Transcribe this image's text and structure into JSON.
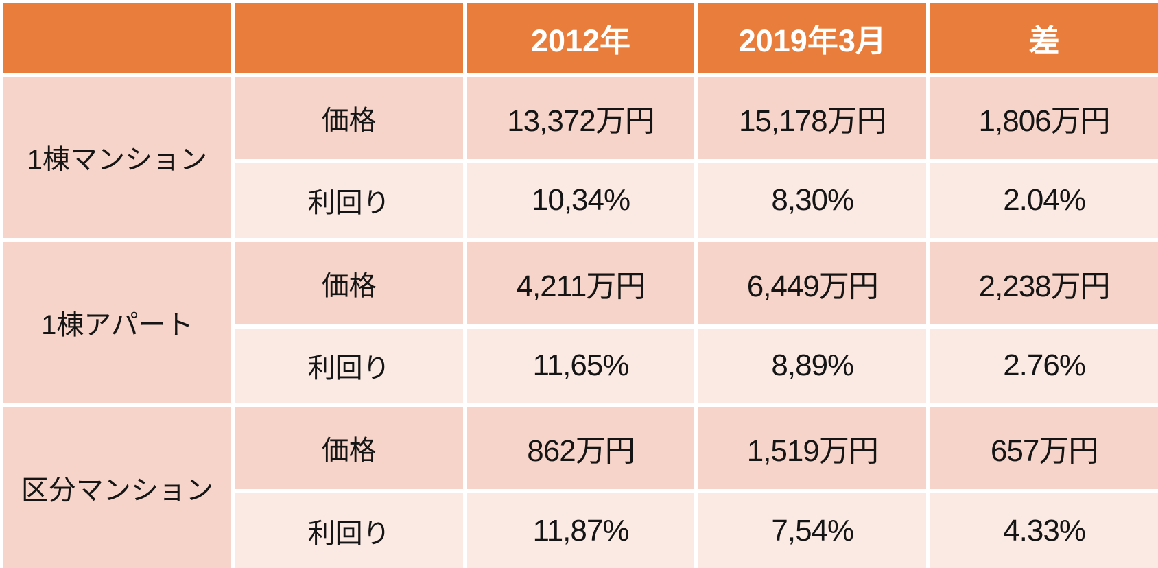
{
  "table": {
    "header_labels": [
      "",
      "",
      "2012年",
      "2019年3月",
      "差"
    ],
    "groups": [
      {
        "name": "1棟マンション",
        "rows": [
          {
            "label": "価格",
            "values": [
              "13,372万円",
              "15,178万円",
              "1,806万円"
            ]
          },
          {
            "label": "利回り",
            "values": [
              "10,34%",
              "8,30%",
              "2.04%"
            ]
          }
        ]
      },
      {
        "name": "1棟アパート",
        "rows": [
          {
            "label": "価格",
            "values": [
              "4,211万円",
              "6,449万円",
              "2,238万円"
            ]
          },
          {
            "label": "利回り",
            "values": [
              "11,65%",
              "8,89%",
              "2.76%"
            ]
          }
        ]
      },
      {
        "name": "区分マンション",
        "rows": [
          {
            "label": "価格",
            "values": [
              "862万円",
              "1,519万円",
              "657万円"
            ]
          },
          {
            "label": "利回り",
            "values": [
              "11,87%",
              "7,54%",
              "4.33%"
            ]
          }
        ]
      }
    ]
  },
  "chart_data": {
    "type": "table",
    "columns": [
      "",
      "",
      "2012年",
      "2019年3月",
      "差"
    ],
    "rows": [
      [
        "1棟マンション",
        "価格",
        "13,372万円",
        "15,178万円",
        "1,806万円"
      ],
      [
        "1棟マンション",
        "利回り",
        "10,34%",
        "8,30%",
        "2.04%"
      ],
      [
        "1棟アパート",
        "価格",
        "4,211万円",
        "6,449万円",
        "2,238万円"
      ],
      [
        "1棟アパート",
        "利回り",
        "11,65%",
        "8,89%",
        "2.76%"
      ],
      [
        "区分マンション",
        "価格",
        "862万円",
        "1,519万円",
        "657万円"
      ],
      [
        "区分マンション",
        "利回り",
        "11,87%",
        "7,54%",
        "4.33%"
      ]
    ],
    "layout_hints": {
      "merged_first_column_per_group": true,
      "row_banding": [
        "dark",
        "light"
      ],
      "gridlines": "white"
    }
  },
  "colors": {
    "header_bg": "#E97D3B",
    "header_text": "#FFFFFF",
    "band_dark": "#F6D4C9",
    "band_light": "#FBE9E3",
    "body_text": "#151515",
    "grid": "#FFFFFF"
  }
}
